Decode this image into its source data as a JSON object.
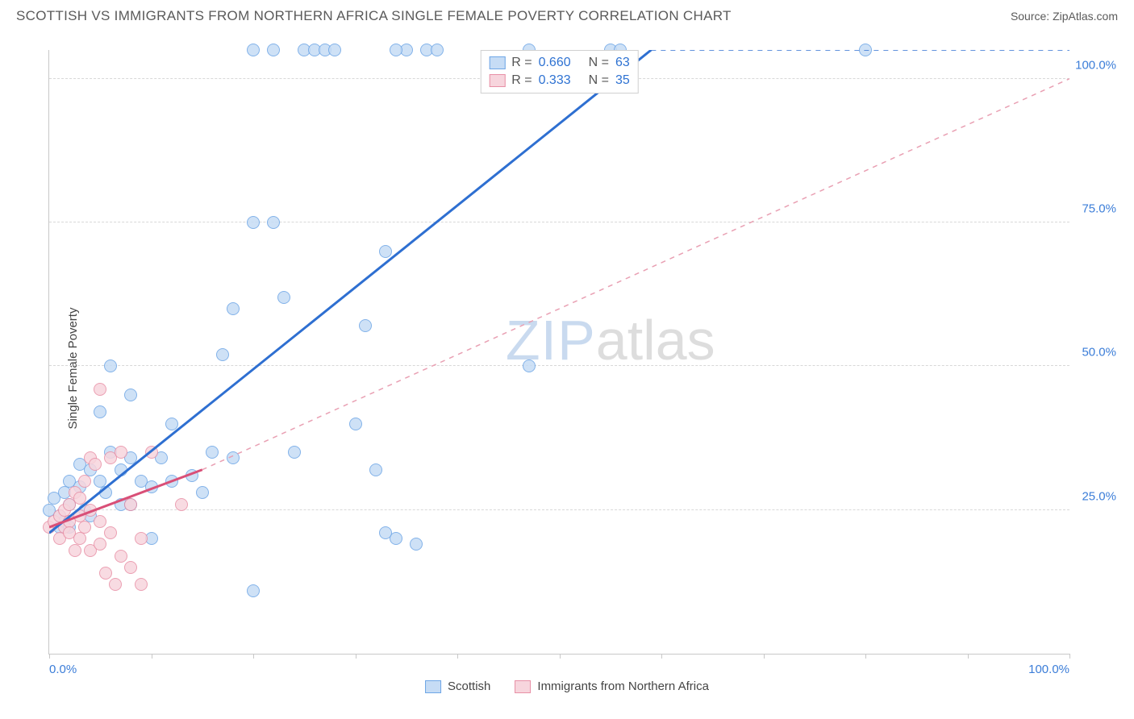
{
  "header": {
    "title": "SCOTTISH VS IMMIGRANTS FROM NORTHERN AFRICA SINGLE FEMALE POVERTY CORRELATION CHART",
    "source": "Source: ZipAtlas.com"
  },
  "chart": {
    "type": "scatter",
    "ylabel": "Single Female Poverty",
    "xlim": [
      0,
      100
    ],
    "ylim": [
      0,
      105
    ],
    "xtick_positions": [
      0,
      10,
      20,
      30,
      40,
      50,
      60,
      70,
      80,
      90,
      100
    ],
    "xtick_labels": {
      "0": "0.0%",
      "100": "100.0%"
    },
    "ytick_positions": [
      25,
      50,
      75,
      100
    ],
    "ytick_labels": [
      "25.0%",
      "50.0%",
      "75.0%",
      "100.0%"
    ],
    "grid_color": "#d8d8d8",
    "background_color": "#ffffff",
    "label_color": "#3b7dd8",
    "label_fontsize": 15,
    "marker_radius": 8,
    "marker_stroke_width": 1.5,
    "series": [
      {
        "name": "Scottish",
        "fill": "#c6dcf5",
        "stroke": "#6ea6e6",
        "line_color": "#2e6fd1",
        "line_style": "solid",
        "line_width": 3,
        "dash_color": "#2e6fd1",
        "R": "0.660",
        "N": "63",
        "trend_solid": {
          "x1": 0,
          "y1": 21,
          "x2": 59,
          "y2": 105
        },
        "trend_dash": {
          "x1": 59,
          "y1": 105,
          "x2": 100,
          "y2": 105
        },
        "points": [
          [
            0,
            25
          ],
          [
            0.5,
            27
          ],
          [
            1,
            22
          ],
          [
            1,
            24
          ],
          [
            1.5,
            28
          ],
          [
            1.5,
            23
          ],
          [
            2,
            26
          ],
          [
            2,
            30
          ],
          [
            2,
            22
          ],
          [
            3,
            29
          ],
          [
            3,
            33
          ],
          [
            3.5,
            25
          ],
          [
            4,
            32
          ],
          [
            4,
            24
          ],
          [
            5,
            42
          ],
          [
            5,
            30
          ],
          [
            5.5,
            28
          ],
          [
            6,
            35
          ],
          [
            6,
            50
          ],
          [
            7,
            32
          ],
          [
            7,
            26
          ],
          [
            8,
            34
          ],
          [
            8,
            45
          ],
          [
            8,
            26
          ],
          [
            9,
            30
          ],
          [
            10,
            29
          ],
          [
            10,
            20
          ],
          [
            11,
            34
          ],
          [
            12,
            40
          ],
          [
            12,
            30
          ],
          [
            14,
            31
          ],
          [
            15,
            28
          ],
          [
            16,
            35
          ],
          [
            17,
            52
          ],
          [
            18,
            34
          ],
          [
            18,
            60
          ],
          [
            20,
            75
          ],
          [
            20,
            11
          ],
          [
            20,
            105
          ],
          [
            22,
            75
          ],
          [
            22,
            105
          ],
          [
            23,
            62
          ],
          [
            24,
            35
          ],
          [
            25,
            105
          ],
          [
            26,
            105
          ],
          [
            27,
            105
          ],
          [
            28,
            105
          ],
          [
            30,
            40
          ],
          [
            31,
            57
          ],
          [
            33,
            70
          ],
          [
            34,
            20
          ],
          [
            35,
            105
          ],
          [
            37,
            105
          ],
          [
            38,
            105
          ],
          [
            32,
            32
          ],
          [
            33,
            21
          ],
          [
            34,
            105
          ],
          [
            36,
            19
          ],
          [
            47,
            50
          ],
          [
            47,
            105
          ],
          [
            55,
            105
          ],
          [
            56,
            105
          ],
          [
            80,
            105
          ]
        ]
      },
      {
        "name": "Immigrants from Northern Africa",
        "fill": "#f7d5dd",
        "stroke": "#e890a6",
        "line_color": "#d94f77",
        "line_style": "solid",
        "line_width": 3,
        "dash_color": "#e9a0b3",
        "R": "0.333",
        "N": "35",
        "trend_solid": {
          "x1": 0,
          "y1": 22,
          "x2": 15,
          "y2": 32
        },
        "trend_dash": {
          "x1": 15,
          "y1": 32,
          "x2": 100,
          "y2": 100
        },
        "points": [
          [
            0,
            22
          ],
          [
            0.5,
            23
          ],
          [
            1,
            24
          ],
          [
            1,
            20
          ],
          [
            1.5,
            25
          ],
          [
            1.5,
            22
          ],
          [
            2,
            26
          ],
          [
            2,
            23
          ],
          [
            2,
            21
          ],
          [
            2.5,
            28
          ],
          [
            2.5,
            18
          ],
          [
            3,
            24
          ],
          [
            3,
            27
          ],
          [
            3,
            20
          ],
          [
            3.5,
            30
          ],
          [
            3.5,
            22
          ],
          [
            4,
            25
          ],
          [
            4,
            34
          ],
          [
            4,
            18
          ],
          [
            4.5,
            33
          ],
          [
            5,
            46
          ],
          [
            5,
            23
          ],
          [
            5,
            19
          ],
          [
            5.5,
            14
          ],
          [
            6,
            34
          ],
          [
            6,
            21
          ],
          [
            6.5,
            12
          ],
          [
            7,
            35
          ],
          [
            7,
            17
          ],
          [
            8,
            26
          ],
          [
            8,
            15
          ],
          [
            9,
            20
          ],
          [
            9,
            12
          ],
          [
            10,
            35
          ],
          [
            13,
            26
          ]
        ]
      }
    ],
    "legend_bottom": [
      {
        "label": "Scottish",
        "fill": "#c6dcf5",
        "stroke": "#6ea6e6"
      },
      {
        "label": "Immigrants from Northern Africa",
        "fill": "#f7d5dd",
        "stroke": "#e890a6"
      }
    ],
    "watermark": {
      "part1": "ZIP",
      "part2": "atlas"
    }
  }
}
